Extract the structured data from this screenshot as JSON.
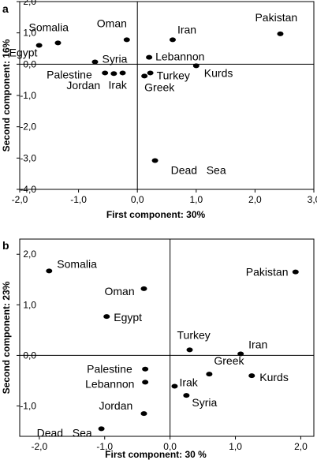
{
  "chart_data": [
    {
      "type": "scatter",
      "panel": "a",
      "xlabel": "First component: 30%",
      "ylabel": "Second component: 16%",
      "xlim": [
        -2.0,
        3.0
      ],
      "ylim": [
        -4.0,
        2.0
      ],
      "xticks": [
        "-2,0",
        "-1,0",
        "0,0",
        "1,0",
        "2,0",
        "3,0"
      ],
      "yticks": [
        "2,0",
        "1,0",
        "0,0",
        "-1,0",
        "-2,0",
        "-3,0",
        "-4,0"
      ],
      "grid": false,
      "points": [
        {
          "label": "Somalia",
          "x": -1.35,
          "y": 0.68
        },
        {
          "label": "Egypt",
          "x": -1.67,
          "y": 0.6
        },
        {
          "label": "Oman",
          "x": -0.18,
          "y": 0.78
        },
        {
          "label": "Syria",
          "x": -0.72,
          "y": 0.07
        },
        {
          "label": "Iran",
          "x": 0.6,
          "y": 0.78
        },
        {
          "label": "Pakistan",
          "x": 2.43,
          "y": 0.97
        },
        {
          "label": "Lebannon",
          "x": 0.2,
          "y": 0.22
        },
        {
          "label": "Palestine",
          "x": -0.55,
          "y": -0.28
        },
        {
          "label": "Jordan",
          "x": -0.4,
          "y": -0.3
        },
        {
          "label": "Irak",
          "x": -0.25,
          "y": -0.28
        },
        {
          "label": "Turkey",
          "x": 0.22,
          "y": -0.28
        },
        {
          "label": "Greek",
          "x": 0.12,
          "y": -0.38
        },
        {
          "label": "Kurds",
          "x": 1.0,
          "y": -0.05
        },
        {
          "label": "Dead   Sea",
          "x": 0.3,
          "y": -3.08
        }
      ]
    },
    {
      "type": "scatter",
      "panel": "b",
      "xlabel": "First component: 30 %",
      "ylabel": "Second component: 23%",
      "xlim": [
        -2.3,
        2.2
      ],
      "ylim": [
        -1.6,
        2.3
      ],
      "xticks": [
        "-2,0",
        "-1,0",
        "0,0",
        "1,0",
        "2,0"
      ],
      "yticks": [
        "2,0",
        "1,0",
        "0,0",
        "-1,0"
      ],
      "grid": false,
      "points": [
        {
          "label": "Somalia",
          "x": -1.85,
          "y": 1.67
        },
        {
          "label": "Oman",
          "x": -0.4,
          "y": 1.32
        },
        {
          "label": "Egypt",
          "x": -0.97,
          "y": 0.77
        },
        {
          "label": "Pakistan",
          "x": 1.92,
          "y": 1.65
        },
        {
          "label": "Turkey",
          "x": 0.3,
          "y": 0.11
        },
        {
          "label": "Iran",
          "x": 1.08,
          "y": 0.03
        },
        {
          "label": "Palestine",
          "x": -0.38,
          "y": -0.27
        },
        {
          "label": "Lebannon",
          "x": -0.38,
          "y": -0.53
        },
        {
          "label": "Greek",
          "x": 0.6,
          "y": -0.37
        },
        {
          "label": "Kurds",
          "x": 1.25,
          "y": -0.4
        },
        {
          "label": "Irak",
          "x": 0.07,
          "y": -0.61
        },
        {
          "label": "Syria",
          "x": 0.25,
          "y": -0.79
        },
        {
          "label": "Jordan",
          "x": -0.4,
          "y": -1.15
        },
        {
          "label": "Dead   Sea",
          "x": -1.05,
          "y": -1.45
        }
      ]
    }
  ]
}
